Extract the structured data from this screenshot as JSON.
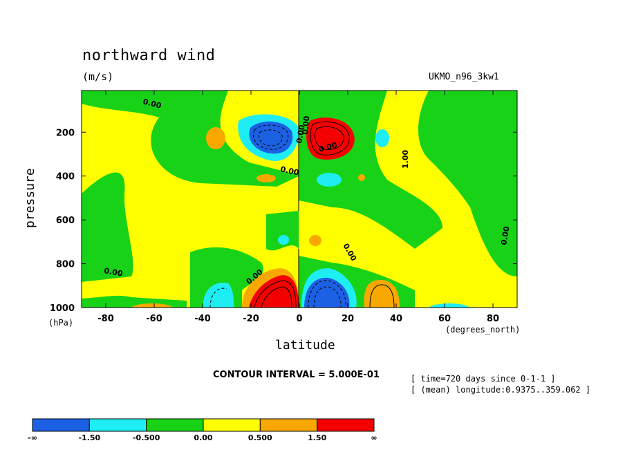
{
  "header": {
    "title": "northward wind",
    "units": "(m/s)",
    "model": "UKMO_n96_3kw1"
  },
  "footer": {
    "contour_interval": "CONTOUR INTERVAL = 5.000E-01",
    "time": "[ time=720 days since 0-1-1 ]",
    "longitude": "[ (mean) longitude:0.9375..359.062 ]"
  },
  "colors": {
    "lt_neg15": "#1c60e4",
    "neg15_neg05": "#1eeef4",
    "neg05_0": "#18d218",
    "zero_05": "#ffff00",
    "p05_15": "#f8a800",
    "gt_15": "#f50000"
  },
  "chart_data": {
    "type": "heatmap",
    "title": "northward wind",
    "subtitle": "(m/s)",
    "xlabel": "latitude",
    "xunits": "(degrees_north)",
    "ylabel": "pressure",
    "yunits": "(hPa)",
    "xlim": [
      -90,
      90
    ],
    "ylim": [
      1000,
      10
    ],
    "x_ticks": [
      -80,
      -60,
      -40,
      -20,
      0,
      20,
      40,
      60,
      80
    ],
    "y_ticks": [
      200,
      400,
      600,
      800,
      1000
    ],
    "contour_labels": [
      "0.00",
      "0.00",
      "0.00",
      "0.00",
      "0.00",
      "0.00",
      "1.00",
      "0.00",
      "0.00",
      "0.00"
    ],
    "colorbar": {
      "labels": [
        "-∞",
        "-1.50",
        "-0.500",
        "0.00",
        "0.500",
        "1.50",
        "∞"
      ],
      "bins": [
        "< -1.5",
        "-1.5 to -0.5",
        "-0.5 to 0",
        "0 to 0.5",
        "0.5 to 1.5",
        "> 1.5"
      ]
    },
    "features": [
      {
        "lat": -9,
        "p": 210,
        "value": "< -1.5"
      },
      {
        "lat": 9,
        "p": 215,
        "value": "> 1.5"
      },
      {
        "lat": -8,
        "p": 960,
        "value": "> 1.5"
      },
      {
        "lat": 9,
        "p": 955,
        "value": "< -1.5"
      },
      {
        "lat": 33,
        "p": 960,
        "value": "0.5 to 1.5"
      },
      {
        "lat": -35,
        "p": 960,
        "value": "-1.5 to -0.5"
      },
      {
        "lat": -36,
        "p": 240,
        "value": "0.5 to 1.5"
      },
      {
        "lat": 35,
        "p": 230,
        "value": "-1.5 to -0.5"
      }
    ]
  }
}
